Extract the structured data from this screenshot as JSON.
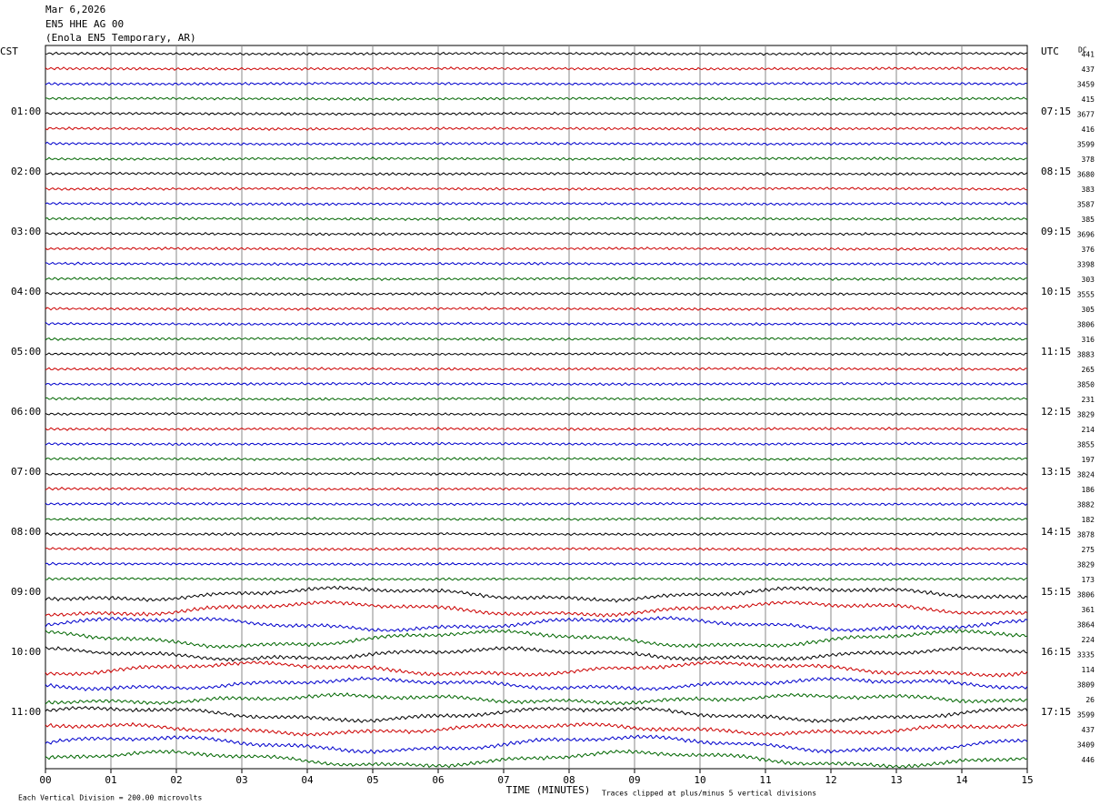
{
  "header": {
    "lines": [
      "Mar 6,2026",
      "EN5 HHE AG 00",
      "(Enola EN5 Temporary, AR)"
    ]
  },
  "left_labels": [
    "CST",
    "01:00",
    "02:00",
    "03:00",
    "04:00",
    "05:00",
    "06:00",
    "07:00",
    "08:00",
    "09:00",
    "10:00",
    "11:00"
  ],
  "right_labels": [
    "UTC",
    "07:15",
    "08:15",
    "09:15",
    "10:15",
    "11:15",
    "12:15",
    "13:15",
    "14:15",
    "15:15",
    "16:15",
    "17:15"
  ],
  "offset_heading": "DC",
  "offsets": [
    441,
    437,
    3459,
    415,
    3677,
    416,
    3599,
    378,
    3680,
    383,
    3587,
    385,
    3696,
    376,
    3398,
    303,
    3555,
    305,
    3806,
    316,
    3883,
    265,
    3850,
    231,
    3829,
    214,
    3855,
    197,
    3824,
    186,
    3882,
    182,
    3878,
    275,
    3829,
    173,
    3806,
    361,
    3864,
    224,
    3335,
    114,
    3809,
    26,
    3599,
    437,
    3409,
    446
  ],
  "x_labels": [
    "00",
    "01",
    "02",
    "03",
    "04",
    "05",
    "06",
    "07",
    "08",
    "09",
    "10",
    "11",
    "12",
    "13",
    "14",
    "15"
  ],
  "footer": {
    "scale": "Each Vertical Division =  200.00 microvolts",
    "axis_title": "TIME (MINUTES)",
    "clip_note": "Traces clipped at plus/minus 5 vertical divisions"
  },
  "trace_colors": [
    "#000000",
    "#cc0000",
    "#0000cc",
    "#006600"
  ]
}
